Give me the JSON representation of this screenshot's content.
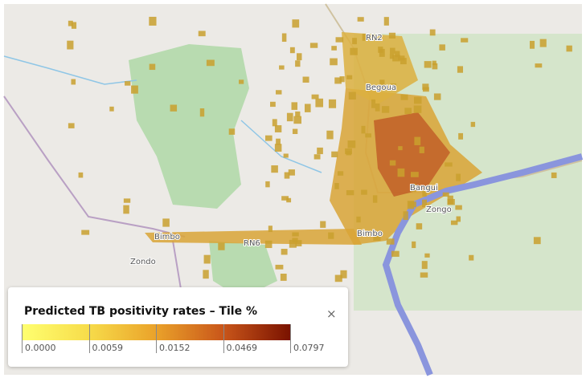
{
  "map": {
    "places": [
      "Begoua",
      "Bangui",
      "Zongo",
      "Bimbo",
      "Bimbo",
      "Zondo",
      "RN2",
      "RN6"
    ]
  },
  "legend": {
    "title": "Predicted  TB positivity rates – Tile %",
    "close": "×",
    "breaks": [
      "0.0000",
      "0.0059",
      "0.0152",
      "0.0469",
      "0.0797"
    ]
  }
}
